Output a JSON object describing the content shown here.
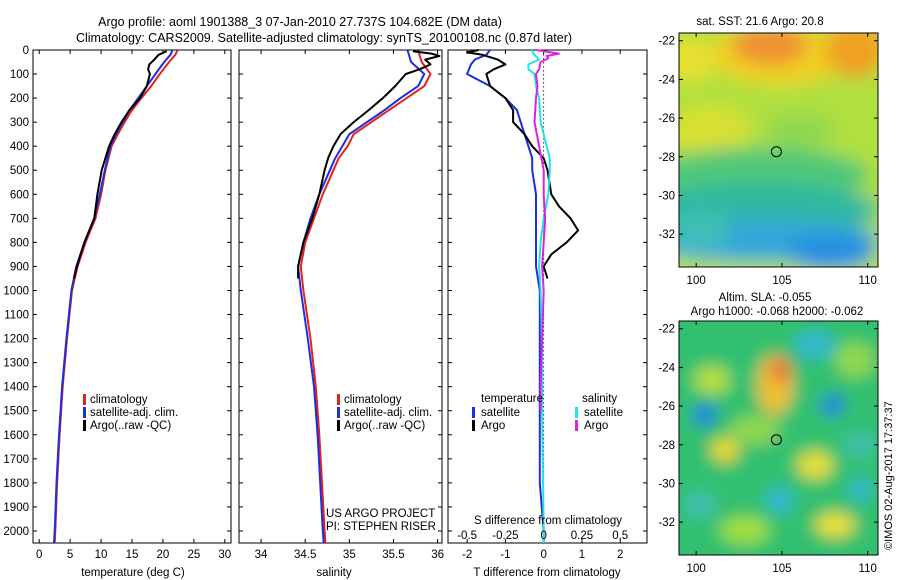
{
  "header": {
    "title_line1": "Argo profile: aoml 1901388_3 07-Jan-2010 27.737S 104.682E (DM data)",
    "title_line2": "Climatology: CARS2009. Satellite-adjusted climatology: synTS_20100108.nc (0.87d later)"
  },
  "depth_axis": {
    "range": [
      0,
      2050
    ],
    "ticks": [
      0,
      100,
      200,
      300,
      400,
      500,
      600,
      700,
      800,
      900,
      1000,
      1100,
      1200,
      1300,
      1400,
      1500,
      1600,
      1700,
      1800,
      1900,
      2000
    ]
  },
  "colors": {
    "climatology": "#e62020",
    "satellite": "#1c2fe0",
    "argo": "#000000",
    "salinity_satellite": "#22e2e8",
    "salinity_argo": "#e020e0"
  },
  "chart_data": [
    {
      "type": "line",
      "panel": "temperature",
      "xlabel": "temperature (deg C)",
      "ylabel": "",
      "xlim": [
        -1,
        31
      ],
      "xticks": [
        0,
        5,
        10,
        15,
        20,
        25,
        30
      ],
      "ylim": [
        2050,
        0
      ],
      "legend": {
        "placement": "lower-left",
        "entries": [
          "climatology",
          "satellite-adj. clim.",
          "Argo(..raw -QC)"
        ]
      },
      "series": [
        {
          "name": "climatology",
          "depth": [
            2,
            10,
            20,
            50,
            100,
            150,
            200,
            250,
            300,
            350,
            400,
            500,
            600,
            700,
            800,
            900,
            1000,
            1200,
            1400,
            1600,
            1800,
            2000,
            2050
          ],
          "values": [
            22.3,
            22.2,
            22.0,
            21.0,
            19.5,
            18.1,
            16.5,
            15.0,
            13.8,
            12.7,
            11.7,
            10.7,
            10.0,
            9.1,
            7.5,
            6.2,
            5.3,
            4.5,
            3.8,
            3.3,
            2.9,
            2.6,
            2.5
          ]
        },
        {
          "name": "satellite-adj. clim.",
          "depth": [
            2,
            10,
            20,
            50,
            100,
            150,
            200,
            250,
            300,
            350,
            400,
            500,
            600,
            700,
            800,
            900,
            1000,
            1200,
            1400,
            1600,
            1800,
            2000,
            2050
          ],
          "values": [
            21.5,
            21.4,
            21.2,
            20.2,
            18.8,
            17.4,
            16.0,
            14.6,
            13.5,
            12.4,
            11.5,
            10.6,
            9.8,
            8.9,
            7.3,
            6.0,
            5.2,
            4.4,
            3.7,
            3.2,
            2.8,
            2.5,
            2.4
          ]
        },
        {
          "name": "Argo(..raw -QC)",
          "depth": [
            5,
            20,
            40,
            60,
            80,
            100,
            150,
            200,
            250,
            300,
            350,
            400,
            500,
            600,
            700,
            800,
            900,
            950
          ],
          "values": [
            20.6,
            19.3,
            18.6,
            17.8,
            17.6,
            17.9,
            17.4,
            16.3,
            14.6,
            13.3,
            12.2,
            11.3,
            10.1,
            9.4,
            8.9,
            7.3,
            6.1,
            5.6
          ]
        }
      ],
      "annotations": []
    },
    {
      "type": "line",
      "panel": "salinity",
      "xlabel": "salinity",
      "ylabel": "",
      "xlim": [
        33.75,
        36.05
      ],
      "xticks": [
        34,
        34.5,
        35,
        35.5,
        36
      ],
      "ylim": [
        2050,
        0
      ],
      "legend": {
        "placement": "lower-right",
        "entries": [
          "climatology",
          "satellite-adj. clim.",
          "Argo(..raw -QC)"
        ]
      },
      "series": [
        {
          "name": "climatology",
          "depth": [
            2,
            50,
            100,
            150,
            200,
            250,
            300,
            350,
            400,
            450,
            500,
            600,
            700,
            800,
            900,
            1000,
            1200,
            1400,
            1600,
            1800,
            2000,
            2050
          ],
          "values": [
            35.78,
            35.82,
            35.92,
            35.85,
            35.65,
            35.45,
            35.25,
            35.05,
            34.98,
            34.88,
            34.82,
            34.7,
            34.6,
            34.5,
            34.45,
            34.48,
            34.56,
            34.62,
            34.66,
            34.69,
            34.72,
            34.73
          ]
        },
        {
          "name": "satellite-adj. clim.",
          "depth": [
            2,
            50,
            100,
            150,
            200,
            250,
            300,
            350,
            400,
            450,
            500,
            600,
            700,
            800,
            900,
            1000,
            1200,
            1400,
            1600,
            1800,
            2000,
            2050
          ],
          "values": [
            35.66,
            35.7,
            35.85,
            35.78,
            35.58,
            35.4,
            35.2,
            35.0,
            34.92,
            34.84,
            34.78,
            34.66,
            34.56,
            34.48,
            34.42,
            34.45,
            34.53,
            34.6,
            34.64,
            34.67,
            34.7,
            34.71
          ]
        },
        {
          "name": "Argo(..raw -QC)",
          "depth": [
            5,
            15,
            25,
            40,
            60,
            80,
            100,
            150,
            200,
            250,
            300,
            350,
            400,
            450,
            500,
            600,
            700,
            800,
            900,
            950
          ],
          "values": [
            35.72,
            35.93,
            36.02,
            35.86,
            35.92,
            35.8,
            35.64,
            35.52,
            35.38,
            35.22,
            35.05,
            34.9,
            34.82,
            34.76,
            34.72,
            34.66,
            34.58,
            34.48,
            34.42,
            34.42
          ]
        }
      ],
      "annotations": [
        "US ARGO PROJECT",
        "PI: STEPHEN RISER"
      ]
    },
    {
      "type": "line",
      "panel": "difference",
      "xlabel": "T difference from climatology",
      "xlabel_top": "S difference from climatology",
      "ylabel": "",
      "xlim": [
        -2.5,
        2.7
      ],
      "xticks": [
        -2,
        -1,
        0,
        1,
        2
      ],
      "sticks_labels": [
        "-0.5",
        "-0.25",
        "0",
        "0.25",
        "0.5"
      ],
      "ylim": [
        2050,
        0
      ],
      "legend": {
        "placement": "lower-center",
        "groups": [
          {
            "title": "temperature",
            "entries": [
              "satellite",
              "Argo"
            ]
          },
          {
            "title": "salinity",
            "entries": [
              "satellite",
              "Argo"
            ]
          }
        ]
      },
      "series": [
        {
          "name": "T satellite",
          "depth": [
            0,
            20,
            40,
            60,
            100,
            150,
            200,
            250,
            300,
            350,
            400,
            450,
            500,
            600,
            700,
            800,
            900,
            1000,
            1200,
            1500,
            1800,
            2000,
            2050
          ],
          "values": [
            -1.4,
            -1.5,
            -1.8,
            -1.9,
            -2.0,
            -1.4,
            -1.0,
            -0.7,
            -0.6,
            -0.5,
            -0.4,
            -0.3,
            -0.3,
            -0.2,
            -0.2,
            -0.2,
            -0.2,
            -0.1,
            -0.1,
            -0.1,
            -0.1,
            0.0,
            0.0
          ]
        },
        {
          "name": "T Argo",
          "depth": [
            0,
            10,
            20,
            40,
            60,
            80,
            100,
            150,
            200,
            250,
            300,
            350,
            400,
            450,
            500,
            600,
            650,
            700,
            750,
            800,
            850,
            900,
            950
          ],
          "values": [
            -1.7,
            -2.0,
            -1.6,
            -1.2,
            -1.0,
            -1.3,
            -1.5,
            -1.4,
            -1.0,
            -0.8,
            -0.8,
            -0.5,
            -0.3,
            0.0,
            0.1,
            0.2,
            0.4,
            0.7,
            0.9,
            0.6,
            0.2,
            0.0,
            0.1
          ]
        },
        {
          "name": "S satellite",
          "depth": [
            0,
            20,
            40,
            60,
            80,
            100,
            150,
            200,
            300,
            400,
            450,
            500,
            600,
            700,
            800,
            900,
            1000,
            1200,
            1500,
            2000,
            2050
          ],
          "values": [
            -0.08,
            -0.06,
            -0.03,
            -0.1,
            -0.1,
            -0.06,
            -0.05,
            -0.03,
            -0.02,
            0.02,
            0.04,
            0.04,
            0.03,
            0.0,
            -0.02,
            -0.03,
            -0.02,
            -0.01,
            -0.01,
            0.0,
            0.0
          ]
        },
        {
          "name": "S Argo",
          "depth": [
            0,
            15,
            25,
            35,
            50,
            80,
            100,
            150,
            200,
            300,
            400,
            500,
            600,
            700,
            800,
            900,
            1000,
            1200,
            1400,
            1500
          ],
          "values": [
            -0.05,
            0.1,
            0.02,
            0.03,
            -0.02,
            -0.03,
            -0.05,
            -0.04,
            -0.05,
            -0.06,
            -0.03,
            0.0,
            0.0,
            0.01,
            0.0,
            -0.01,
            0.0,
            -0.01,
            -0.02,
            -0.02
          ]
        }
      ],
      "annotations": []
    }
  ],
  "maps": {
    "sst": {
      "title": "sat. SST: 21.6 Argo: 20.8",
      "xticks": [
        100,
        105,
        110
      ],
      "yticks": [
        -22,
        -24,
        -26,
        -28,
        -30,
        -32
      ],
      "marker": {
        "lon": 104.68,
        "lat": -27.74
      }
    },
    "sla": {
      "title_line1": "Altim. SLA: -0.055",
      "title_line2": "Argo h1000: -0.068 h2000: -0.062",
      "xticks": [
        100,
        105,
        110
      ],
      "yticks": [
        -22,
        -24,
        -26,
        -28,
        -30,
        -32
      ],
      "marker": {
        "lon": 104.68,
        "lat": -27.74
      }
    }
  },
  "credit": "©IMOS 02-Aug-2017 17:37:37"
}
